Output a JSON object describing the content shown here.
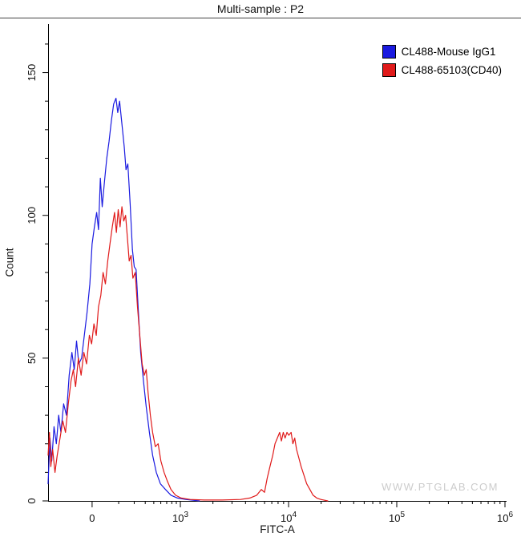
{
  "chart_data": {
    "type": "line",
    "subtype": "flow-cytometry-histogram-overlay",
    "title": "Multi-sample : P2",
    "xlabel": "FITC-A",
    "ylabel": "Count",
    "watermark": "WWW.PTGLAB.COM",
    "legend_position": "top-right",
    "grid": false,
    "x_axis": {
      "scale": "biexponential",
      "ticks": [
        {
          "label": "0",
          "frac": 0.096
        },
        {
          "base": "10",
          "exp": "3",
          "frac": 0.2885
        },
        {
          "base": "10",
          "exp": "4",
          "frac": 0.5245
        },
        {
          "base": "10",
          "exp": "5",
          "frac": 0.7605
        },
        {
          "base": "10",
          "exp": "6",
          "frac": 0.9965
        }
      ]
    },
    "y_axis": {
      "ticks": [
        0,
        50,
        100,
        150
      ],
      "minor_step": 10,
      "max": 167
    },
    "series": [
      {
        "name": "CL488-Mouse IgG1",
        "color": "#1a1ae0",
        "peak_count": 141,
        "points": [
          [
            0.0,
            6
          ],
          [
            0.004,
            22
          ],
          [
            0.008,
            14
          ],
          [
            0.013,
            26
          ],
          [
            0.018,
            20
          ],
          [
            0.023,
            30
          ],
          [
            0.028,
            24
          ],
          [
            0.034,
            34
          ],
          [
            0.04,
            30
          ],
          [
            0.046,
            44
          ],
          [
            0.052,
            52
          ],
          [
            0.057,
            46
          ],
          [
            0.062,
            56
          ],
          [
            0.067,
            48
          ],
          [
            0.073,
            50
          ],
          [
            0.079,
            58
          ],
          [
            0.085,
            66
          ],
          [
            0.091,
            76
          ],
          [
            0.096,
            90
          ],
          [
            0.101,
            96
          ],
          [
            0.106,
            101
          ],
          [
            0.11,
            95
          ],
          [
            0.114,
            113
          ],
          [
            0.118,
            103
          ],
          [
            0.123,
            112
          ],
          [
            0.128,
            120
          ],
          [
            0.133,
            126
          ],
          [
            0.138,
            133
          ],
          [
            0.143,
            139
          ],
          [
            0.148,
            141
          ],
          [
            0.152,
            136
          ],
          [
            0.156,
            140
          ],
          [
            0.161,
            132
          ],
          [
            0.166,
            124
          ],
          [
            0.17,
            116
          ],
          [
            0.174,
            118
          ],
          [
            0.179,
            104
          ],
          [
            0.184,
            88
          ],
          [
            0.188,
            82
          ],
          [
            0.192,
            81
          ],
          [
            0.197,
            66
          ],
          [
            0.202,
            52
          ],
          [
            0.208,
            42
          ],
          [
            0.214,
            33
          ],
          [
            0.221,
            24
          ],
          [
            0.228,
            16
          ],
          [
            0.236,
            10
          ],
          [
            0.245,
            6
          ],
          [
            0.256,
            4
          ],
          [
            0.268,
            2
          ],
          [
            0.282,
            1
          ],
          [
            0.3,
            0.5
          ],
          [
            0.33,
            0
          ]
        ]
      },
      {
        "name": "CL488-65103(CD40)",
        "color": "#e01a1a",
        "peak_count": 103,
        "second_peak_count": 24,
        "points": [
          [
            0.0,
            16
          ],
          [
            0.003,
            24
          ],
          [
            0.006,
            12
          ],
          [
            0.01,
            18
          ],
          [
            0.015,
            10
          ],
          [
            0.02,
            16
          ],
          [
            0.026,
            22
          ],
          [
            0.032,
            28
          ],
          [
            0.038,
            24
          ],
          [
            0.044,
            34
          ],
          [
            0.05,
            42
          ],
          [
            0.055,
            46
          ],
          [
            0.06,
            40
          ],
          [
            0.066,
            50
          ],
          [
            0.072,
            44
          ],
          [
            0.078,
            52
          ],
          [
            0.084,
            48
          ],
          [
            0.09,
            58
          ],
          [
            0.095,
            55
          ],
          [
            0.1,
            62
          ],
          [
            0.105,
            58
          ],
          [
            0.11,
            68
          ],
          [
            0.115,
            72
          ],
          [
            0.12,
            80
          ],
          [
            0.125,
            76
          ],
          [
            0.13,
            84
          ],
          [
            0.135,
            90
          ],
          [
            0.14,
            96
          ],
          [
            0.145,
            101
          ],
          [
            0.149,
            94
          ],
          [
            0.153,
            102
          ],
          [
            0.157,
            96
          ],
          [
            0.161,
            103
          ],
          [
            0.165,
            98
          ],
          [
            0.169,
            100
          ],
          [
            0.173,
            92
          ],
          [
            0.177,
            84
          ],
          [
            0.181,
            86
          ],
          [
            0.185,
            78
          ],
          [
            0.19,
            80
          ],
          [
            0.195,
            68
          ],
          [
            0.2,
            58
          ],
          [
            0.205,
            48
          ],
          [
            0.21,
            44
          ],
          [
            0.214,
            46
          ],
          [
            0.218,
            38
          ],
          [
            0.223,
            30
          ],
          [
            0.228,
            24
          ],
          [
            0.234,
            19
          ],
          [
            0.24,
            20
          ],
          [
            0.246,
            14
          ],
          [
            0.253,
            10
          ],
          [
            0.26,
            7
          ],
          [
            0.268,
            4
          ],
          [
            0.278,
            2
          ],
          [
            0.29,
            1
          ],
          [
            0.31,
            0.5
          ],
          [
            0.34,
            0.3
          ],
          [
            0.38,
            0.3
          ],
          [
            0.42,
            0.5
          ],
          [
            0.44,
            1
          ],
          [
            0.455,
            2
          ],
          [
            0.465,
            4
          ],
          [
            0.472,
            3
          ],
          [
            0.478,
            8
          ],
          [
            0.484,
            12
          ],
          [
            0.49,
            16
          ],
          [
            0.495,
            20
          ],
          [
            0.5,
            22
          ],
          [
            0.505,
            24
          ],
          [
            0.509,
            21
          ],
          [
            0.513,
            24
          ],
          [
            0.517,
            22
          ],
          [
            0.521,
            24
          ],
          [
            0.525,
            23
          ],
          [
            0.53,
            24
          ],
          [
            0.534,
            20
          ],
          [
            0.538,
            22
          ],
          [
            0.542,
            18
          ],
          [
            0.547,
            15
          ],
          [
            0.552,
            12
          ],
          [
            0.558,
            9
          ],
          [
            0.564,
            6
          ],
          [
            0.571,
            4
          ],
          [
            0.578,
            2
          ],
          [
            0.586,
            1
          ],
          [
            0.595,
            0.5
          ],
          [
            0.61,
            0
          ]
        ]
      }
    ]
  }
}
